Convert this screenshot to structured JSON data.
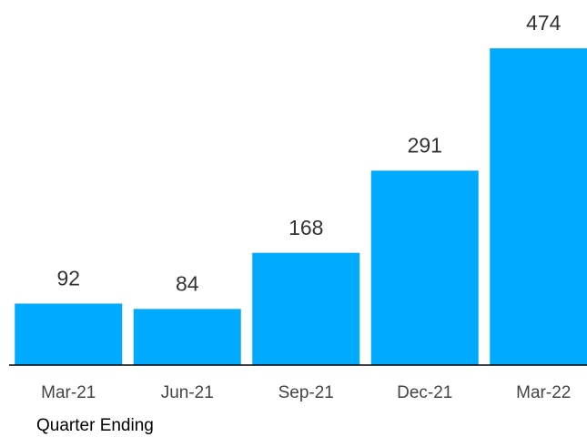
{
  "chart_data": {
    "type": "bar",
    "x_label": "Quarter Ending",
    "categories": [
      "Mar-21",
      "Jun-21",
      "Sep-21",
      "Dec-21",
      "Mar-22"
    ],
    "values": [
      92,
      84,
      168,
      291,
      474
    ],
    "color": "#00aaff",
    "ylim": [
      0,
      500
    ],
    "grid": false
  }
}
